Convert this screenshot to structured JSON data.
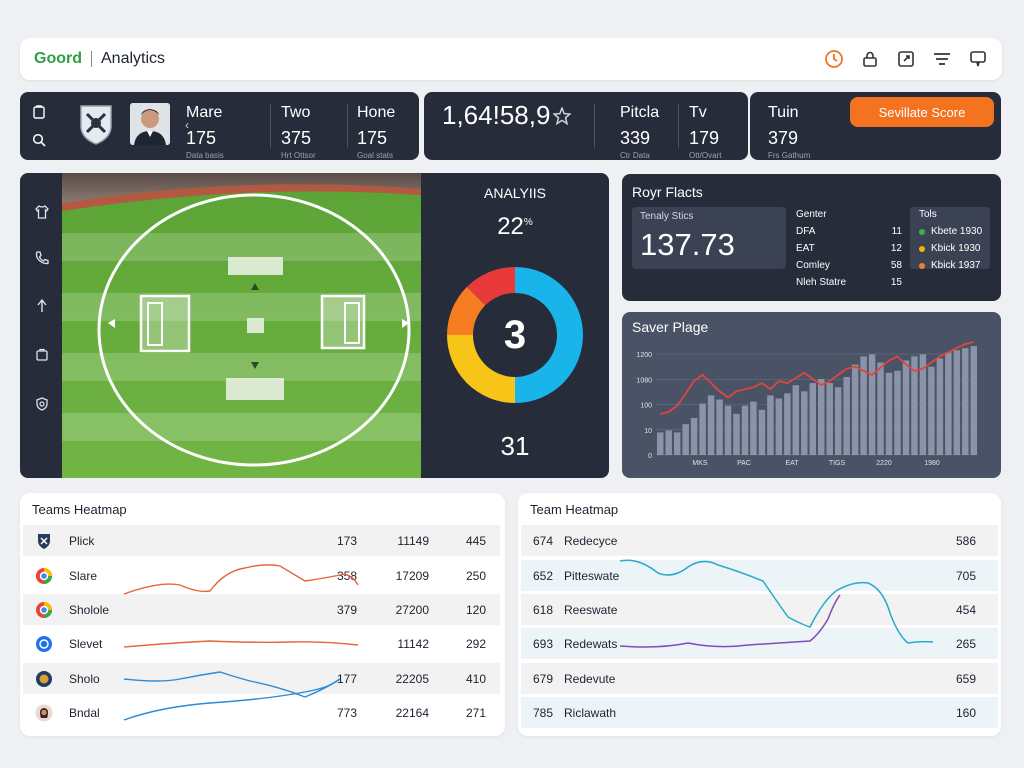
{
  "topbar": {
    "brand": "Goord",
    "title": "Analytics",
    "icons": [
      "timer-icon",
      "user-lock-icon",
      "export-icon",
      "filter-icon",
      "chat-icon"
    ]
  },
  "team_stats": [
    {
      "label": "Mare",
      "value": "175",
      "sub": "Data basis"
    },
    {
      "label": "Two",
      "value": "375",
      "sub": "Hrt Ottsor"
    },
    {
      "label": "Hone",
      "value": "175",
      "sub": "Goal stats"
    }
  ],
  "score": {
    "big": "1,64!58,9",
    "items": [
      {
        "label": "Pitcla",
        "value": "339",
        "sub": "Ctr Data"
      },
      {
        "label": "Tv",
        "value": "179",
        "sub": "Ott/Ovart"
      }
    ]
  },
  "tuin": {
    "label": "Tuin",
    "value": "379",
    "sub": "Frs Gathum",
    "button": "Sevillate Score"
  },
  "analysis": {
    "title": "ANALYIIS",
    "percent": "22",
    "percent_suffix": "%",
    "center": "3",
    "bottom": "31",
    "colors": [
      "#e83a3a",
      "#18b4ea",
      "#f7c518",
      "#f57c20"
    ]
  },
  "facts": {
    "title": "Royr Flacts",
    "box_label": "Tenaly Stics",
    "box_value": "137.73",
    "header": {
      "a": "Genter",
      "b": "",
      "c": "Tols"
    },
    "rows": [
      {
        "a": "DFA",
        "b": "11",
        "c": "Kbete 1930",
        "color": "#37b24d"
      },
      {
        "a": "EAT",
        "b": "12",
        "c": "Kbick 1930",
        "color": "#f2b705"
      },
      {
        "a": "Comley",
        "b": "58",
        "c": "Kbick 1937",
        "color": "#f08030"
      },
      {
        "a": "Nleh Statre",
        "b": "15",
        "c": "",
        "color": ""
      }
    ]
  },
  "player_chart": {
    "title": "Saver Plage",
    "y_ticks": [
      "1200",
      "1080",
      "100",
      "10",
      "0"
    ],
    "x_ticks": [
      "MKS",
      "PAC",
      "EAT",
      "TIGS",
      "2220",
      "1980"
    ]
  },
  "chart_data": {
    "type": "bar",
    "title": "Saver Plage",
    "y_ticks": [
      "1200",
      "1080",
      "100",
      "10",
      "0"
    ],
    "x_ticks": [
      "MKS",
      "PAC",
      "EAT",
      "TIGS",
      "2220",
      "1980"
    ],
    "bars": [
      22,
      24,
      22,
      30,
      36,
      50,
      58,
      54,
      48,
      40,
      48,
      52,
      44,
      58,
      55,
      60,
      68,
      62,
      70,
      74,
      70,
      66,
      76,
      88,
      96,
      98,
      90,
      80,
      82,
      92,
      96,
      98,
      86,
      94,
      100,
      102,
      104,
      106
    ],
    "line": [
      40,
      42,
      48,
      60,
      72,
      78,
      70,
      62,
      56,
      62,
      64,
      66,
      70,
      64,
      72,
      70,
      75,
      80,
      74,
      68,
      72,
      78,
      84,
      86,
      82,
      78,
      85,
      92,
      96,
      88,
      82,
      84,
      90,
      96,
      100,
      104,
      108,
      110
    ]
  },
  "team_heatmap_left": {
    "title": "Teams Heatmap",
    "rows": [
      {
        "name": "Plick",
        "v1": "173",
        "v2": "11149",
        "v3": "445",
        "icon_color": "#2a3a5a"
      },
      {
        "name": "Slare",
        "v1": "358",
        "v2": "17209",
        "v3": "250",
        "icon_color": "#ea4335"
      },
      {
        "name": "Sholole",
        "v1": "379",
        "v2": "27200",
        "v3": "120",
        "icon_color": "#34a853"
      },
      {
        "name": "Slevet",
        "v1": "11142",
        "v2": "",
        "v3": "292",
        "icon_color": "#1a73e8"
      },
      {
        "name": "Sholo",
        "v1": "177",
        "v2": "22205",
        "v3": "410",
        "icon_color": "#223a66"
      },
      {
        "name": "Bndal",
        "v1": "773",
        "v2": "22164",
        "v3": "271",
        "icon_color": "#5a3b2e"
      }
    ]
  },
  "team_heatmap_right": {
    "title": "Team Heatmap",
    "rows": [
      {
        "num": "674",
        "name": "Redecyce",
        "value": "586"
      },
      {
        "num": "652",
        "name": "Pitteswate",
        "value": "705"
      },
      {
        "num": "618",
        "name": "Reeswate",
        "value": "454"
      },
      {
        "num": "693",
        "name": "Redewats",
        "value": "265"
      },
      {
        "num": "679",
        "name": "Redevute",
        "value": "659"
      },
      {
        "num": "785",
        "name": "Riclawath",
        "value": "160"
      }
    ]
  }
}
